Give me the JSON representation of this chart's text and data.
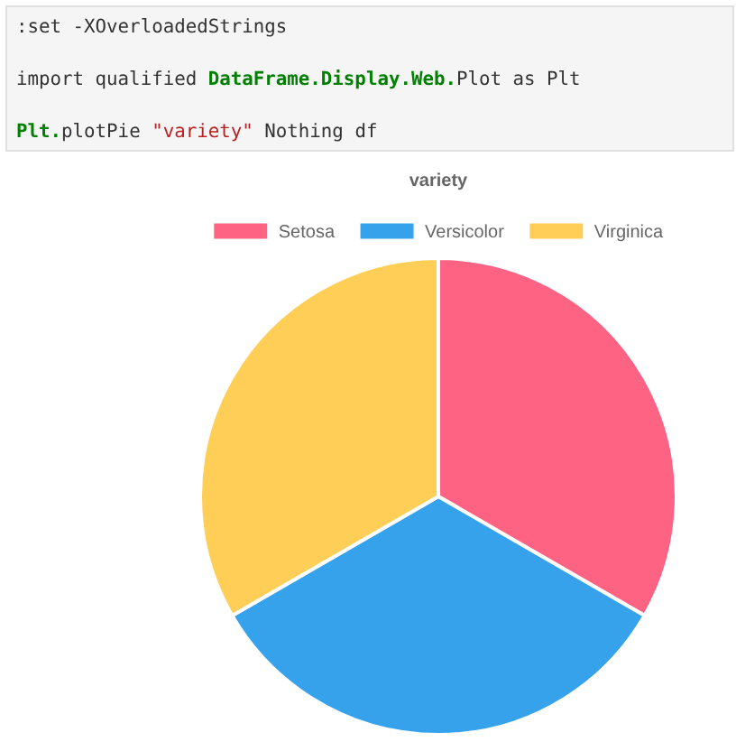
{
  "chart_data": {
    "type": "pie",
    "title": "variety",
    "categories": [
      "Setosa",
      "Versicolor",
      "Virginica"
    ],
    "values": [
      33.33,
      33.33,
      33.34
    ],
    "colors": [
      "#ff6384",
      "#36a2eb",
      "#ffce56"
    ],
    "legend": "top",
    "annotations": [
      ":set -XOverloadedStrings",
      "import qualified DataFrame.Display.Web.Plot as Plt",
      "Plt.plotPie \"variety\" Nothing df"
    ]
  }
}
